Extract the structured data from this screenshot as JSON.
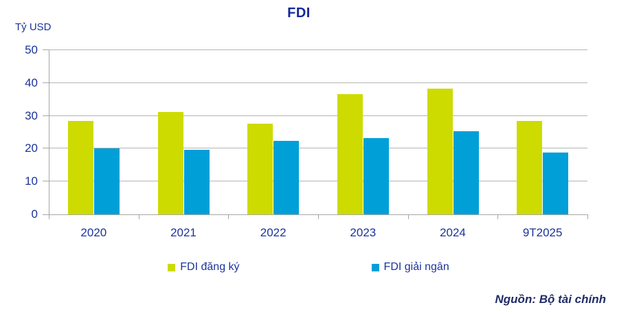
{
  "header": {
    "title": "FDI",
    "y_axis_unit": "Tỷ USD"
  },
  "chart_data": {
    "type": "bar",
    "title": "FDI",
    "ylabel": "Tỷ USD",
    "xlabel": "",
    "ylim": [
      0,
      50
    ],
    "yticks": [
      0,
      10,
      20,
      30,
      40,
      50
    ],
    "grid": true,
    "legend_position": "bottom",
    "categories": [
      "2020",
      "2021",
      "2022",
      "2023",
      "2024",
      "9T2025"
    ],
    "series": [
      {
        "name": "FDI đăng ký",
        "color": "#CDDB00",
        "values": [
          28.5,
          31.2,
          27.7,
          36.6,
          38.2,
          28.5
        ]
      },
      {
        "name": "FDI giải ngân",
        "color": "#009FD8",
        "values": [
          20.0,
          19.7,
          22.4,
          23.2,
          25.4,
          18.8
        ]
      }
    ]
  },
  "footer": {
    "source": "Nguồn: Bộ tài chính"
  },
  "colors": {
    "title_navy": "#14289B",
    "text_navy": "#1B339B",
    "source_navy": "#1F2C66",
    "gridline": "#B3B3B3",
    "axis": "#A6A6A6",
    "background": "#FFFFFF"
  }
}
